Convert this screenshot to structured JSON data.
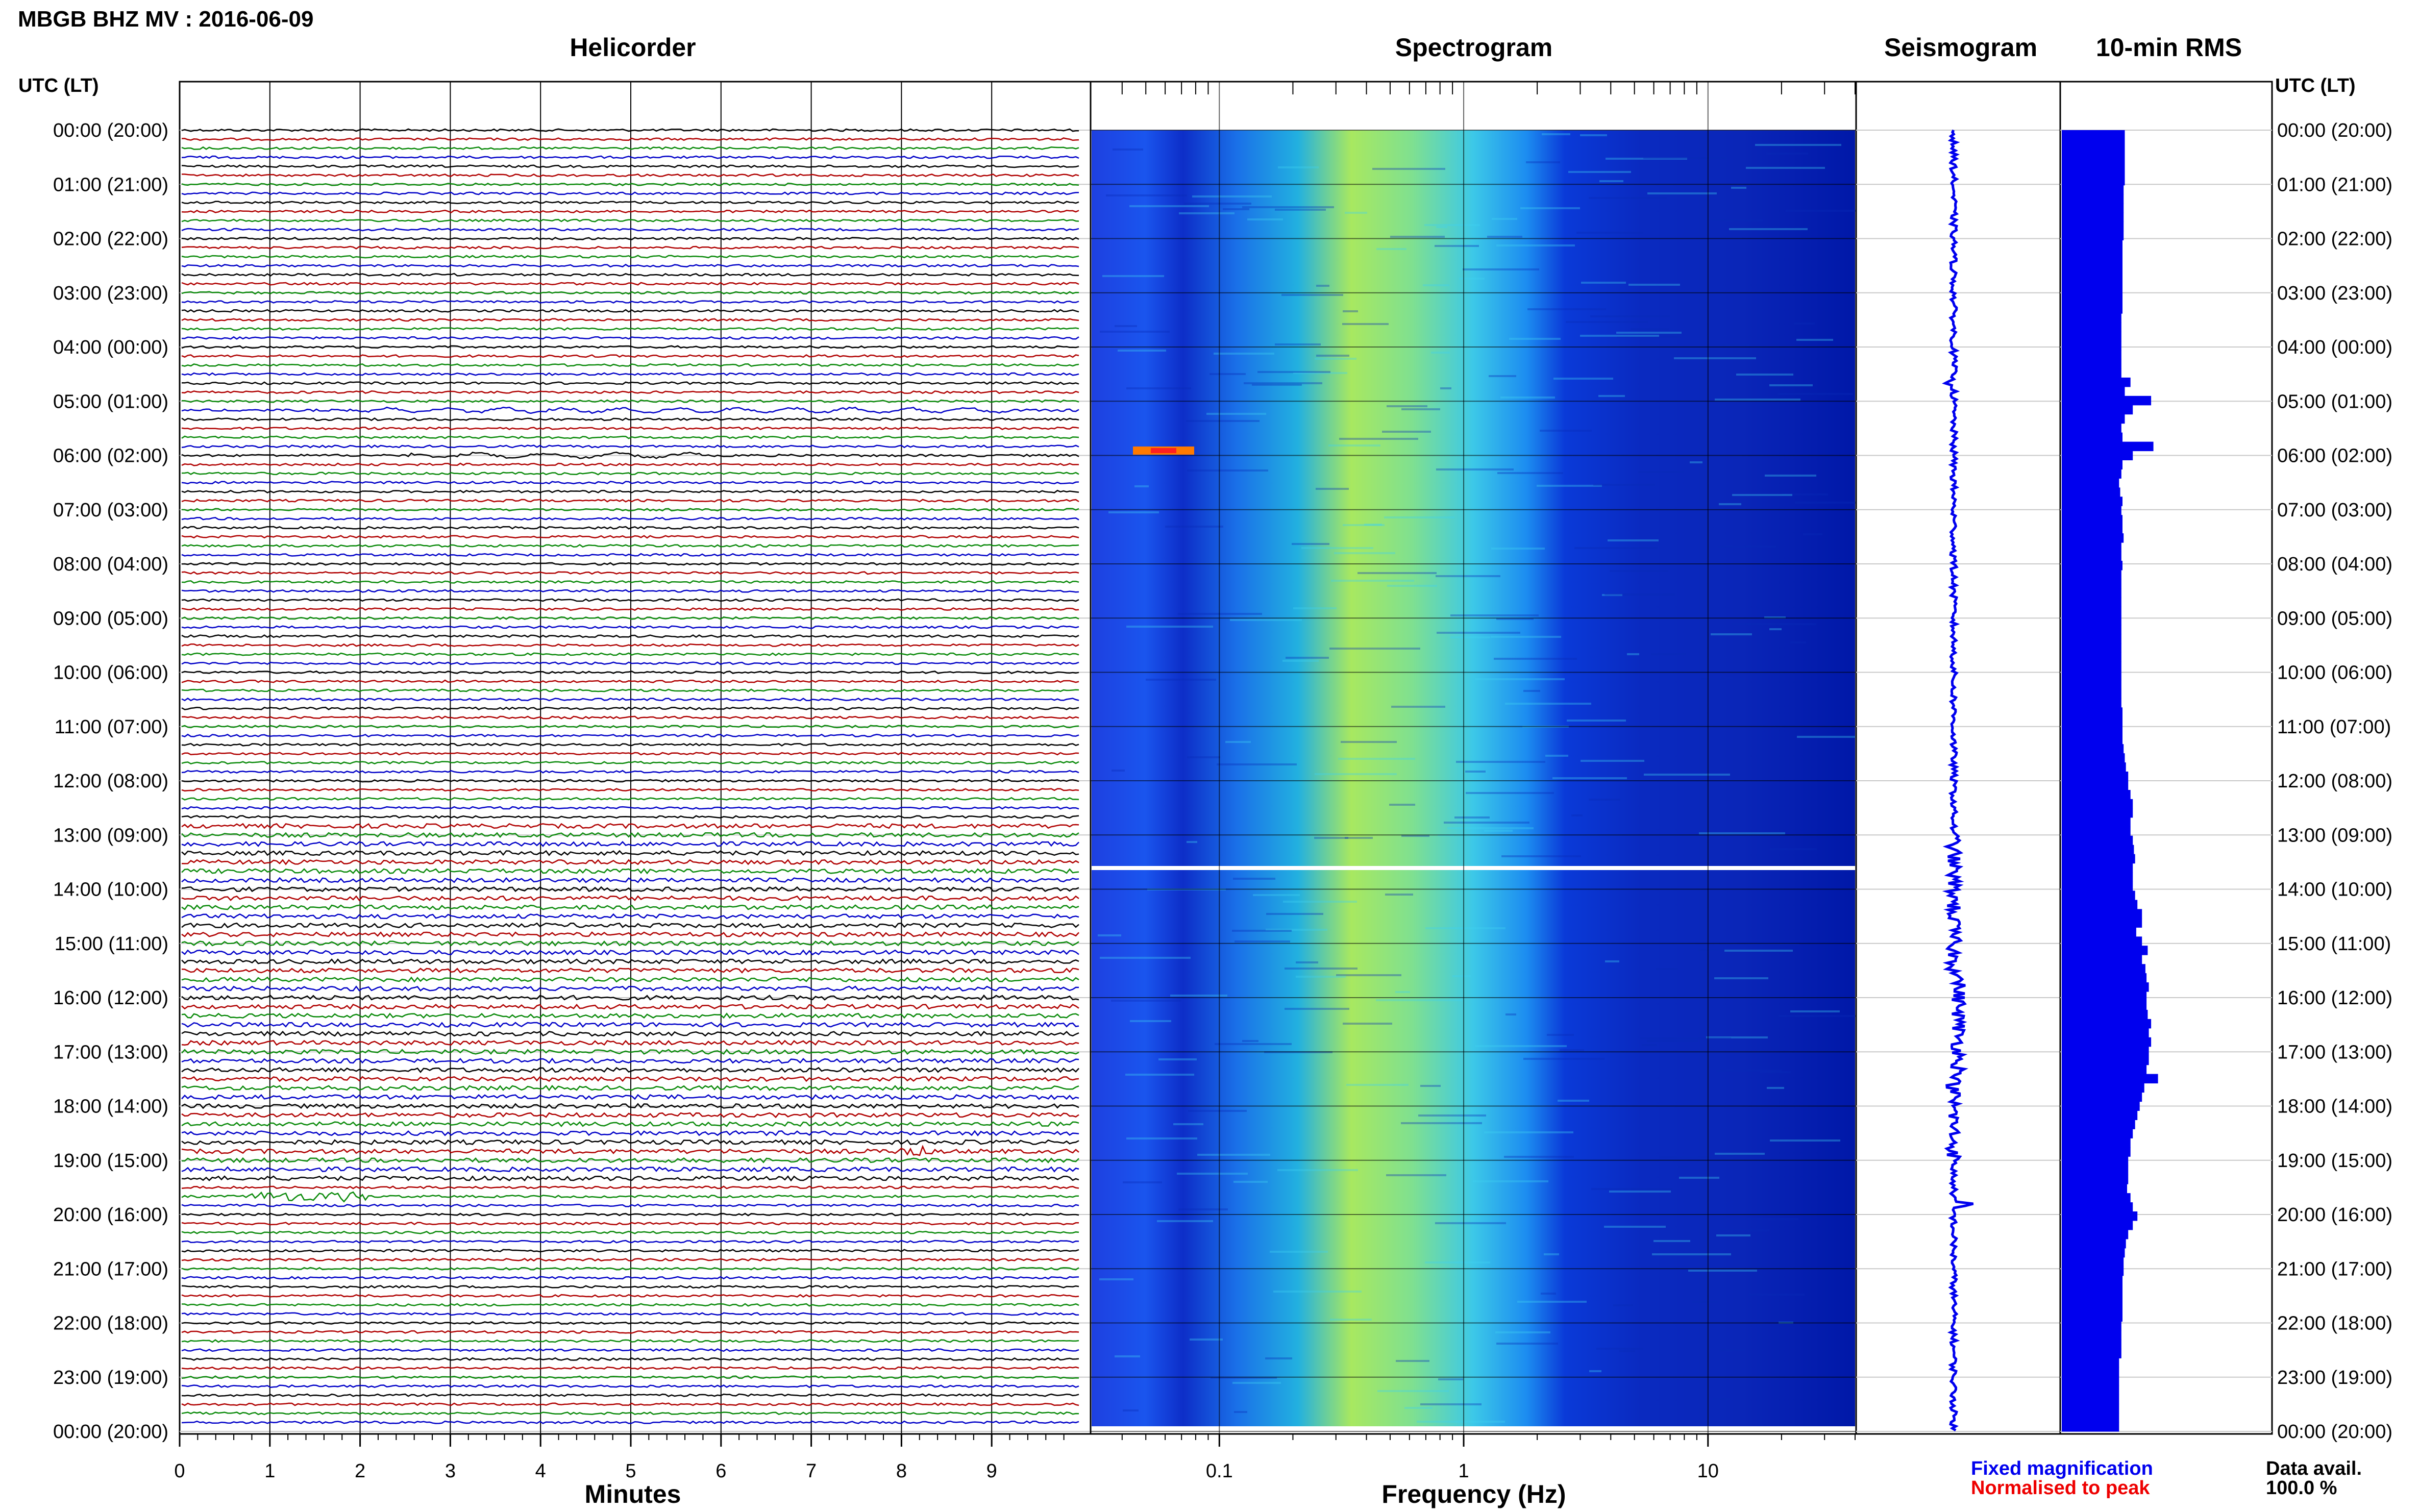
{
  "title": "MBGB BHZ MV : 2016-06-09",
  "panels": {
    "helicorder": "Helicorder",
    "spectrogram": "Spectrogram",
    "seismogram": "Seismogram",
    "rms": "10-min RMS"
  },
  "time_axis_label": "UTC (LT)",
  "time_labels": [
    "00:00 (20:00)",
    "01:00 (21:00)",
    "02:00 (22:00)",
    "03:00 (23:00)",
    "04:00 (00:00)",
    "05:00 (01:00)",
    "06:00 (02:00)",
    "07:00 (03:00)",
    "08:00 (04:00)",
    "09:00 (05:00)",
    "10:00 (06:00)",
    "11:00 (07:00)",
    "12:00 (08:00)",
    "13:00 (09:00)",
    "14:00 (10:00)",
    "15:00 (11:00)",
    "16:00 (12:00)",
    "17:00 (13:00)",
    "18:00 (14:00)",
    "19:00 (15:00)",
    "20:00 (16:00)",
    "21:00 (17:00)",
    "22:00 (18:00)",
    "23:00 (19:00)",
    "00:00 (20:00)"
  ],
  "helicorder_xlabel": "Minutes",
  "helicorder_xticks": [
    "0",
    "1",
    "2",
    "3",
    "4",
    "5",
    "6",
    "7",
    "8",
    "9"
  ],
  "spectrogram_xlabel": "Frequency (Hz)",
  "spectrogram_xticks": [
    "0.1",
    "1",
    "10"
  ],
  "legend": {
    "fixed": "Fixed magnification",
    "normalised": "Normalised to peak",
    "fixed_color": "#0000ee",
    "normalised_color": "#ee0000"
  },
  "data_avail_label": "Data avail.",
  "data_avail_value": "100.0 %",
  "colors": {
    "trace_cycle": [
      "#000000",
      "#b00000",
      "#0a8a0a",
      "#0000c8"
    ],
    "rms_fill": "#0000ee",
    "spectrogram_low": "#0000a0",
    "spectrogram_high": "#ff0000"
  },
  "chart_data": {
    "type": "heatmap",
    "time_hours_utc": [
      0,
      24
    ],
    "helicorder_minutes_range": [
      0,
      10
    ],
    "spectrogram_frequency_hz_log_range": [
      0.03,
      40
    ],
    "rms_10min_relative": [
      0.55,
      0.55,
      0.55,
      0.55,
      0.55,
      0.55,
      0.54,
      0.54,
      0.54,
      0.54,
      0.54,
      0.54,
      0.53,
      0.53,
      0.53,
      0.53,
      0.53,
      0.53,
      0.53,
      0.53,
      0.52,
      0.52,
      0.52,
      0.52,
      0.52,
      0.52,
      0.52,
      0.6,
      0.55,
      0.78,
      0.62,
      0.55,
      0.52,
      0.53,
      0.8,
      0.62,
      0.53,
      0.52,
      0.5,
      0.51,
      0.53,
      0.52,
      0.53,
      0.53,
      0.54,
      0.52,
      0.52,
      0.53,
      0.52,
      0.52,
      0.52,
      0.52,
      0.52,
      0.52,
      0.52,
      0.52,
      0.52,
      0.52,
      0.52,
      0.52,
      0.52,
      0.52,
      0.52,
      0.53,
      0.53,
      0.53,
      0.53,
      0.54,
      0.55,
      0.56,
      0.58,
      0.58,
      0.6,
      0.62,
      0.62,
      0.6,
      0.6,
      0.62,
      0.63,
      0.64,
      0.62,
      0.62,
      0.62,
      0.64,
      0.66,
      0.7,
      0.7,
      0.65,
      0.7,
      0.75,
      0.7,
      0.73,
      0.74,
      0.76,
      0.74,
      0.74,
      0.75,
      0.78,
      0.76,
      0.78,
      0.76,
      0.76,
      0.74,
      0.84,
      0.72,
      0.7,
      0.68,
      0.66,
      0.64,
      0.62,
      0.6,
      0.6,
      0.58,
      0.58,
      0.58,
      0.57,
      0.6,
      0.62,
      0.66,
      0.62,
      0.58,
      0.56,
      0.55,
      0.54,
      0.54,
      0.53,
      0.53,
      0.53,
      0.53,
      0.53,
      0.52,
      0.52,
      0.52,
      0.52,
      0.5,
      0.5,
      0.5,
      0.5,
      0.5,
      0.5,
      0.5,
      0.5
    ]
  }
}
